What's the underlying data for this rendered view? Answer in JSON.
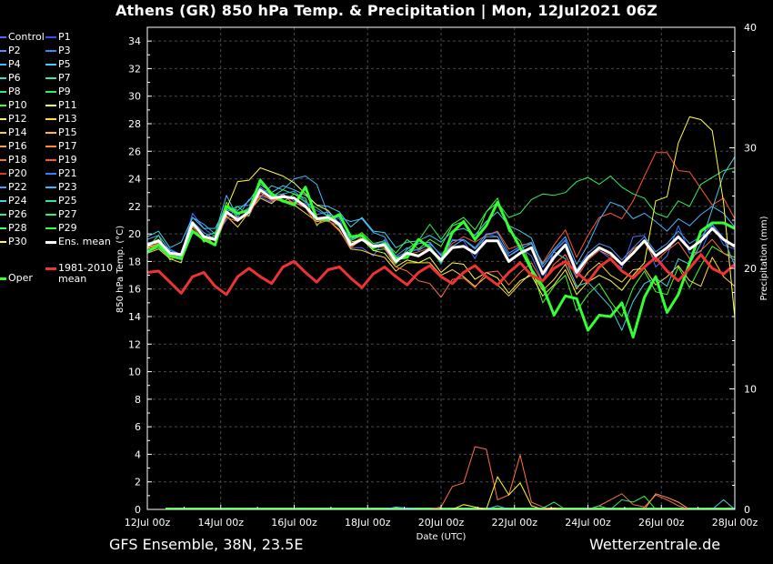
{
  "title": "Athens  (GR)  850 hPa Temp. & Precipitation | Mon, 12Jul2021 06Z",
  "footer": {
    "source": "GFS Ensemble, 38N, 23.5E",
    "site": "Wetterzentrale.de"
  },
  "colors": {
    "background": "#000000",
    "grid": "#555555",
    "mean": "#ffffff",
    "climate": "#ee3333",
    "oper": "#33ff33"
  },
  "chart_data": {
    "type": "line",
    "title": "Athens  (GR)  850 hPa Temp. & Precipitation | Mon, 12Jul2021 06Z",
    "xlabel": "Date (UTC)",
    "ylabel": "850 hPa Temp. (°C)",
    "y2label": "Precipitation (mm)",
    "ylim": [
      0,
      35
    ],
    "y2lim": [
      0,
      40
    ],
    "y_ticks": [
      0,
      2,
      4,
      6,
      8,
      10,
      12,
      14,
      16,
      18,
      20,
      22,
      24,
      26,
      28,
      30,
      32,
      34
    ],
    "y2_ticks": [
      0,
      10,
      20,
      30,
      40
    ],
    "x_ticks": [
      "12Jul 00z",
      "14Jul 00z",
      "16Jul 00z",
      "18Jul 00z",
      "20Jul 00z",
      "22Jul 00z",
      "24Jul 00z",
      "26Jul 00z",
      "28Jul 00z"
    ],
    "x_start": "2021-07-12 00z",
    "x_end": "2021-07-28 00z",
    "x_step_hours": 6,
    "grid": true,
    "legend_position": "left",
    "legend": [
      {
        "name": "Control",
        "color": "#4a6cff"
      },
      {
        "name": "P1",
        "color": "#3a4cff"
      },
      {
        "name": "P2",
        "color": "#5a8cff"
      },
      {
        "name": "P3",
        "color": "#2f8cff"
      },
      {
        "name": "P4",
        "color": "#4fb4ff"
      },
      {
        "name": "P5",
        "color": "#3ad0ff"
      },
      {
        "name": "P6",
        "color": "#33e0c8"
      },
      {
        "name": "P7",
        "color": "#33e8a8"
      },
      {
        "name": "P8",
        "color": "#33e680"
      },
      {
        "name": "P9",
        "color": "#33f060"
      },
      {
        "name": "P10",
        "color": "#44ff22"
      },
      {
        "name": "P11",
        "color": "#ffff44"
      },
      {
        "name": "P12",
        "color": "#ffe870"
      },
      {
        "name": "P13",
        "color": "#ffd844"
      },
      {
        "name": "P14",
        "color": "#ffcc33"
      },
      {
        "name": "P15",
        "color": "#ffb833"
      },
      {
        "name": "P16",
        "color": "#ff9a55"
      },
      {
        "name": "P17",
        "color": "#ff8833"
      },
      {
        "name": "P18",
        "color": "#ff7040"
      },
      {
        "name": "P19",
        "color": "#ff5533"
      },
      {
        "name": "P20",
        "color": "#ee3322"
      },
      {
        "name": "P21",
        "color": "#3a7cff"
      },
      {
        "name": "P22",
        "color": "#4a9cff"
      },
      {
        "name": "P23",
        "color": "#3ab8ff"
      },
      {
        "name": "P24",
        "color": "#44d0e8"
      },
      {
        "name": "P25",
        "color": "#33e0b0"
      },
      {
        "name": "P26",
        "color": "#33e890"
      },
      {
        "name": "P27",
        "color": "#33f070"
      },
      {
        "name": "P28",
        "color": "#44ff66"
      },
      {
        "name": "P29",
        "color": "#33ff44"
      },
      {
        "name": "P30",
        "color": "#ffff33"
      },
      {
        "name": "Ens. mean",
        "color": "#ffffff"
      },
      {
        "name": "1981-2010 mean",
        "label_lines": [
          "1981-2010",
          "mean"
        ],
        "color": "#ee3333"
      },
      {
        "name": "Oper",
        "color": "#33ff33"
      }
    ],
    "series": [
      {
        "name": "Ens. mean",
        "color": "#ffffff",
        "values": [
          19.2,
          19.5,
          18.6,
          18.5,
          20.8,
          19.8,
          19.6,
          21.6,
          21.0,
          21.6,
          23.2,
          22.6,
          22.7,
          22.6,
          22.0,
          21.1,
          21.2,
          20.7,
          19.2,
          19.6,
          19.1,
          19.2,
          18.0,
          18.6,
          18.4,
          18.9,
          18.1,
          19.0,
          19.1,
          18.6,
          19.5,
          19.5,
          18.0,
          18.6,
          19.0,
          17.1,
          18.3,
          19.2,
          17.2,
          18.3,
          19.0,
          18.6,
          17.8,
          18.6,
          19.5,
          18.4,
          19.0,
          19.8,
          18.9,
          19.5,
          20.4,
          19.6,
          19.1
        ]
      },
      {
        "name": "1981-2010 mean",
        "color": "#ee3333",
        "values": [
          17.2,
          17.3,
          16.5,
          15.7,
          16.9,
          17.2,
          16.2,
          15.6,
          16.9,
          17.5,
          16.9,
          16.4,
          17.6,
          18.0,
          17.2,
          16.5,
          17.4,
          17.6,
          16.8,
          16.1,
          17.1,
          17.6,
          16.9,
          16.3,
          17.2,
          17.7,
          16.9,
          16.4,
          17.2,
          17.7,
          16.9,
          16.3,
          17.2,
          17.9,
          17.0,
          16.6,
          17.5,
          18.0,
          17.2,
          16.5,
          17.6,
          18.2,
          17.3,
          16.8,
          17.6,
          18.3,
          17.3,
          16.6,
          17.5,
          18.5,
          17.5,
          17.1,
          17.8
        ]
      },
      {
        "name": "Oper",
        "color": "#33ff33",
        "values": [
          18.7,
          19.2,
          18.4,
          18.2,
          20.2,
          19.6,
          19.2,
          22.0,
          21.5,
          21.7,
          23.9,
          22.9,
          22.4,
          22.1,
          23.4,
          21.1,
          21.0,
          21.4,
          19.8,
          19.9,
          19.0,
          19.3,
          18.2,
          18.3,
          19.6,
          19.0,
          18.0,
          20.1,
          20.9,
          19.6,
          20.6,
          22.3,
          20.5,
          19.0,
          17.4,
          16.2,
          14.1,
          15.5,
          15.3,
          13.0,
          14.1,
          14.0,
          15.0,
          12.5,
          15.4,
          16.9,
          14.3,
          15.6,
          17.9,
          20.2,
          20.8,
          20.8,
          20.4
        ]
      },
      {
        "name": "Control",
        "color": "#4a6cff",
        "values": [
          19.4,
          19.3,
          18.9,
          18.5,
          21.5,
          20.4,
          19.8,
          21.0,
          22.0,
          22.1,
          22.7,
          22.3,
          22.9,
          22.4,
          22.2,
          21.7,
          21.3,
          21.1,
          19.0,
          19.0,
          18.4,
          19.6,
          18.0,
          18.6,
          18.9,
          19.2,
          17.8,
          19.6,
          19.5,
          18.2,
          20.0,
          19.8,
          18.4,
          19.0,
          18.4,
          16.5,
          18.8,
          19.6,
          16.9,
          18.4,
          18.8,
          18.2,
          17.5,
          19.8,
          19.9,
          17.6,
          18.4,
          20.6,
          18.6,
          18.7,
          20.7,
          19.2,
          18.9
        ]
      },
      {
        "name": "P10",
        "color": "#44ff22",
        "values": [
          19.0,
          19.9,
          18.1,
          18.6,
          20.6,
          19.4,
          19.9,
          22.3,
          21.1,
          21.5,
          24.0,
          22.7,
          22.3,
          22.9,
          22.6,
          20.6,
          21.4,
          20.8,
          19.6,
          20.1,
          19.3,
          19.5,
          18.6,
          19.6,
          18.9,
          19.6,
          19.1,
          20.6,
          20.9,
          19.5,
          21.6,
          22.6,
          20.2,
          19.5,
          17.6,
          15.0,
          16.2,
          17.0,
          14.4,
          15.6,
          16.4,
          15.1,
          14.0,
          16.1,
          17.3,
          15.8,
          15.6,
          17.6,
          16.1,
          17.7,
          19.1,
          18.6,
          18.3
        ]
      },
      {
        "name": "P13",
        "color": "#ffd844",
        "values": [
          18.6,
          18.9,
          18.2,
          17.9,
          20.9,
          19.9,
          19.2,
          21.3,
          20.5,
          21.6,
          22.6,
          22.2,
          22.9,
          22.1,
          21.5,
          20.9,
          21.0,
          20.3,
          18.9,
          18.8,
          18.5,
          18.3,
          17.3,
          17.9,
          17.9,
          17.9,
          17.0,
          17.4,
          16.9,
          16.2,
          16.9,
          16.3,
          15.5,
          16.4,
          17.2,
          15.9,
          16.7,
          17.8,
          16.0,
          17.2,
          17.9,
          17.0,
          16.5,
          17.4,
          17.5,
          16.3,
          16.9,
          17.7,
          16.6,
          16.2,
          18.3,
          16.9,
          16.2
        ]
      },
      {
        "name": "P19",
        "color": "#ff5533",
        "values": [
          18.9,
          19.4,
          18.3,
          18.2,
          20.5,
          19.6,
          19.6,
          21.4,
          21.2,
          21.3,
          23.0,
          22.4,
          22.8,
          22.2,
          22.1,
          21.0,
          20.9,
          20.6,
          19.2,
          19.8,
          19.0,
          19.3,
          18.1,
          18.5,
          18.7,
          19.0,
          18.2,
          19.3,
          19.8,
          19.4,
          19.9,
          20.2,
          18.9,
          19.2,
          19.3,
          17.9,
          19.2,
          20.3,
          18.3,
          19.9,
          21.2,
          21.5,
          21.1,
          22.4,
          24.2,
          25.9,
          25.9,
          24.6,
          24.5,
          23.3,
          22.1,
          22.6,
          21.1
        ]
      },
      {
        "name": "P24",
        "color": "#44d0e8",
        "values": [
          19.8,
          20.2,
          19.0,
          19.4,
          21.2,
          20.4,
          20.4,
          22.0,
          21.7,
          22.4,
          23.6,
          23.0,
          23.5,
          23.2,
          22.8,
          22.1,
          22.0,
          21.6,
          20.5,
          21.2,
          20.2,
          20.1,
          19.0,
          19.4,
          19.5,
          19.9,
          19.4,
          20.2,
          20.4,
          19.9,
          20.9,
          21.6,
          20.6,
          20.2,
          19.7,
          17.6,
          18.7,
          18.2,
          16.2,
          16.5,
          15.6,
          14.7,
          13.0,
          15.1,
          16.4,
          16.8,
          16.2,
          18.2,
          17.8,
          19.3,
          21.8,
          24.3,
          25.6
        ]
      },
      {
        "name": "P4",
        "color": "#4fb4ff",
        "values": [
          19.6,
          19.9,
          18.8,
          18.5,
          21.2,
          20.7,
          20.0,
          22.8,
          21.2,
          22.5,
          22.7,
          23.5,
          23.2,
          24.0,
          24.2,
          23.6,
          21.4,
          21.2,
          20.9,
          21.1,
          20.1,
          19.8,
          18.3,
          18.7,
          19.3,
          19.4,
          18.4,
          19.1,
          19.6,
          18.9,
          19.8,
          19.8,
          18.4,
          18.9,
          19.3,
          17.8,
          18.9,
          19.8,
          17.8,
          19.2,
          21.0,
          22.3,
          22.0,
          21.1,
          21.5,
          20.9,
          20.2,
          21.1,
          20.6,
          21.4,
          22.0,
          21.5,
          20.5
        ]
      },
      {
        "name": "P9",
        "color": "#33f060",
        "values": [
          18.7,
          19.0,
          18.3,
          18.5,
          20.7,
          19.8,
          20.1,
          21.6,
          22.0,
          21.3,
          24.0,
          22.7,
          23.2,
          22.9,
          22.3,
          21.9,
          21.3,
          20.5,
          19.5,
          19.9,
          18.8,
          18.9,
          17.8,
          18.9,
          19.5,
          20.7,
          19.6,
          20.7,
          21.2,
          20.3,
          21.6,
          22.3,
          21.2,
          21.5,
          22.5,
          22.9,
          22.8,
          23.0,
          23.8,
          24.1,
          23.6,
          24.2,
          23.4,
          22.9,
          22.6,
          21.5,
          21.2,
          22.4,
          22.0,
          23.6,
          24.1,
          24.6,
          24.8
        ]
      },
      {
        "name": "P11",
        "color": "#ffff44",
        "values": [
          19.1,
          19.2,
          18.4,
          18.4,
          20.3,
          19.5,
          19.3,
          21.8,
          23.8,
          23.9,
          24.8,
          24.5,
          24.2,
          23.7,
          22.9,
          22.1,
          21.7,
          20.7,
          19.4,
          19.6,
          18.8,
          18.6,
          17.6,
          18.1,
          17.9,
          18.3,
          17.2,
          17.9,
          17.8,
          16.7,
          17.2,
          16.8,
          15.7,
          16.6,
          17.0,
          15.5,
          16.3,
          17.4,
          15.6,
          16.5,
          17.0,
          16.6,
          15.9,
          17.0,
          17.9,
          22.4,
          22.7,
          26.6,
          28.5,
          28.3,
          27.5,
          22.3,
          13.9
        ]
      },
      {
        "name": "P18",
        "color": "#ff7040",
        "values": [
          18.9,
          19.3,
          18.5,
          18.3,
          20.2,
          19.7,
          19.5,
          21.2,
          20.9,
          21.6,
          22.8,
          22.5,
          22.4,
          22.3,
          21.9,
          20.7,
          21.0,
          20.2,
          19.0,
          19.6,
          19.1,
          19.0,
          17.6,
          17.3,
          16.6,
          16.4,
          15.4,
          16.7,
          16.8,
          16.1,
          17.2,
          17.3,
          16.3,
          17.2,
          17.9,
          16.5,
          17.8,
          18.5,
          16.8,
          18.1,
          18.8,
          18.4,
          17.8,
          18.9,
          19.4,
          18.0,
          18.8,
          19.4,
          18.2,
          18.8,
          19.6,
          18.6,
          18.1
        ]
      },
      {
        "name": "P22",
        "color": "#4a9cff",
        "values": [
          19.3,
          19.6,
          18.7,
          18.3,
          20.9,
          20.1,
          19.6,
          21.8,
          21.4,
          21.9,
          23.4,
          22.8,
          22.9,
          23.1,
          22.4,
          21.4,
          21.6,
          20.8,
          19.6,
          19.9,
          19.2,
          19.5,
          18.4,
          19.0,
          18.8,
          19.3,
          18.5,
          19.5,
          19.6,
          19.0,
          20.0,
          20.1,
          18.6,
          19.1,
          19.4,
          17.6,
          18.7,
          19.5,
          17.4,
          18.6,
          19.3,
          19.0,
          18.1,
          19.0,
          19.8,
          18.7,
          19.3,
          20.2,
          19.3,
          19.8,
          20.7,
          19.7,
          17.7
        ]
      }
    ],
    "precipitation_series": [
      {
        "name": "P18",
        "color": "#ff7040",
        "values": [
          0,
          0,
          0,
          0,
          0,
          0,
          0,
          0,
          0,
          0,
          0,
          0,
          0,
          0,
          0,
          0,
          0,
          0,
          0,
          0,
          0,
          0,
          0,
          0,
          0,
          0,
          0.2,
          1.9,
          2.2,
          5.2,
          5.0,
          0.8,
          1.2,
          4.5,
          0.6,
          0.2,
          0,
          0,
          0,
          0,
          0.3,
          0.8,
          1.3,
          0.4,
          0.2,
          1.2,
          0.8,
          0.3,
          0,
          0,
          0,
          0,
          0
        ]
      },
      {
        "name": "P30",
        "color": "#ffff33",
        "values": [
          0,
          0,
          0,
          0,
          0,
          0,
          0,
          0,
          0,
          0,
          0,
          0,
          0,
          0,
          0,
          0,
          0,
          0,
          0,
          0,
          0,
          0,
          0,
          0,
          0,
          0,
          0,
          0,
          0.4,
          0.2,
          0,
          2.7,
          1.2,
          2.2,
          0.3,
          0,
          0.1,
          0,
          0,
          0,
          0,
          0,
          0,
          0,
          0,
          0,
          0,
          0,
          0,
          0,
          0,
          0,
          0
        ]
      },
      {
        "name": "P16",
        "color": "#ff9a55",
        "values": [
          0,
          0,
          0,
          0,
          0,
          0,
          0,
          0,
          0,
          0,
          0,
          0,
          0,
          0,
          0,
          0,
          0,
          0,
          0,
          0,
          0,
          0,
          0,
          0,
          0,
          0,
          0,
          0,
          0,
          0,
          0,
          0,
          0,
          0,
          0,
          0,
          0,
          0,
          0,
          0,
          0,
          0,
          0,
          0,
          0,
          1.3,
          1.0,
          0.6,
          0,
          0,
          0,
          0,
          0
        ]
      },
      {
        "name": "P9",
        "color": "#33f060",
        "values": [
          0,
          0,
          0,
          0,
          0,
          0,
          0,
          0,
          0,
          0,
          0,
          0,
          0,
          0,
          0,
          0,
          0,
          0,
          0,
          0,
          0,
          0,
          0,
          0,
          0,
          0,
          0,
          0,
          0,
          0,
          0,
          0,
          0,
          0,
          0,
          0.1,
          0.6,
          0,
          0,
          0,
          0.3,
          0,
          0.8,
          0.6,
          1.1,
          0,
          0,
          0,
          0,
          0,
          0,
          0,
          0
        ]
      },
      {
        "name": "P24",
        "color": "#44d0e8",
        "values": [
          0,
          0,
          0,
          0,
          0,
          0,
          0,
          0,
          0,
          0,
          0,
          0,
          0,
          0,
          0,
          0,
          0,
          0,
          0,
          0,
          0,
          0,
          0.2,
          0.1,
          0,
          0,
          0,
          0,
          0,
          0,
          0,
          0.3,
          0,
          0,
          0,
          0,
          0,
          0,
          0,
          0,
          0,
          0,
          0,
          0,
          0,
          0,
          0,
          0,
          0,
          0,
          0,
          0.8,
          0
        ]
      }
    ]
  }
}
